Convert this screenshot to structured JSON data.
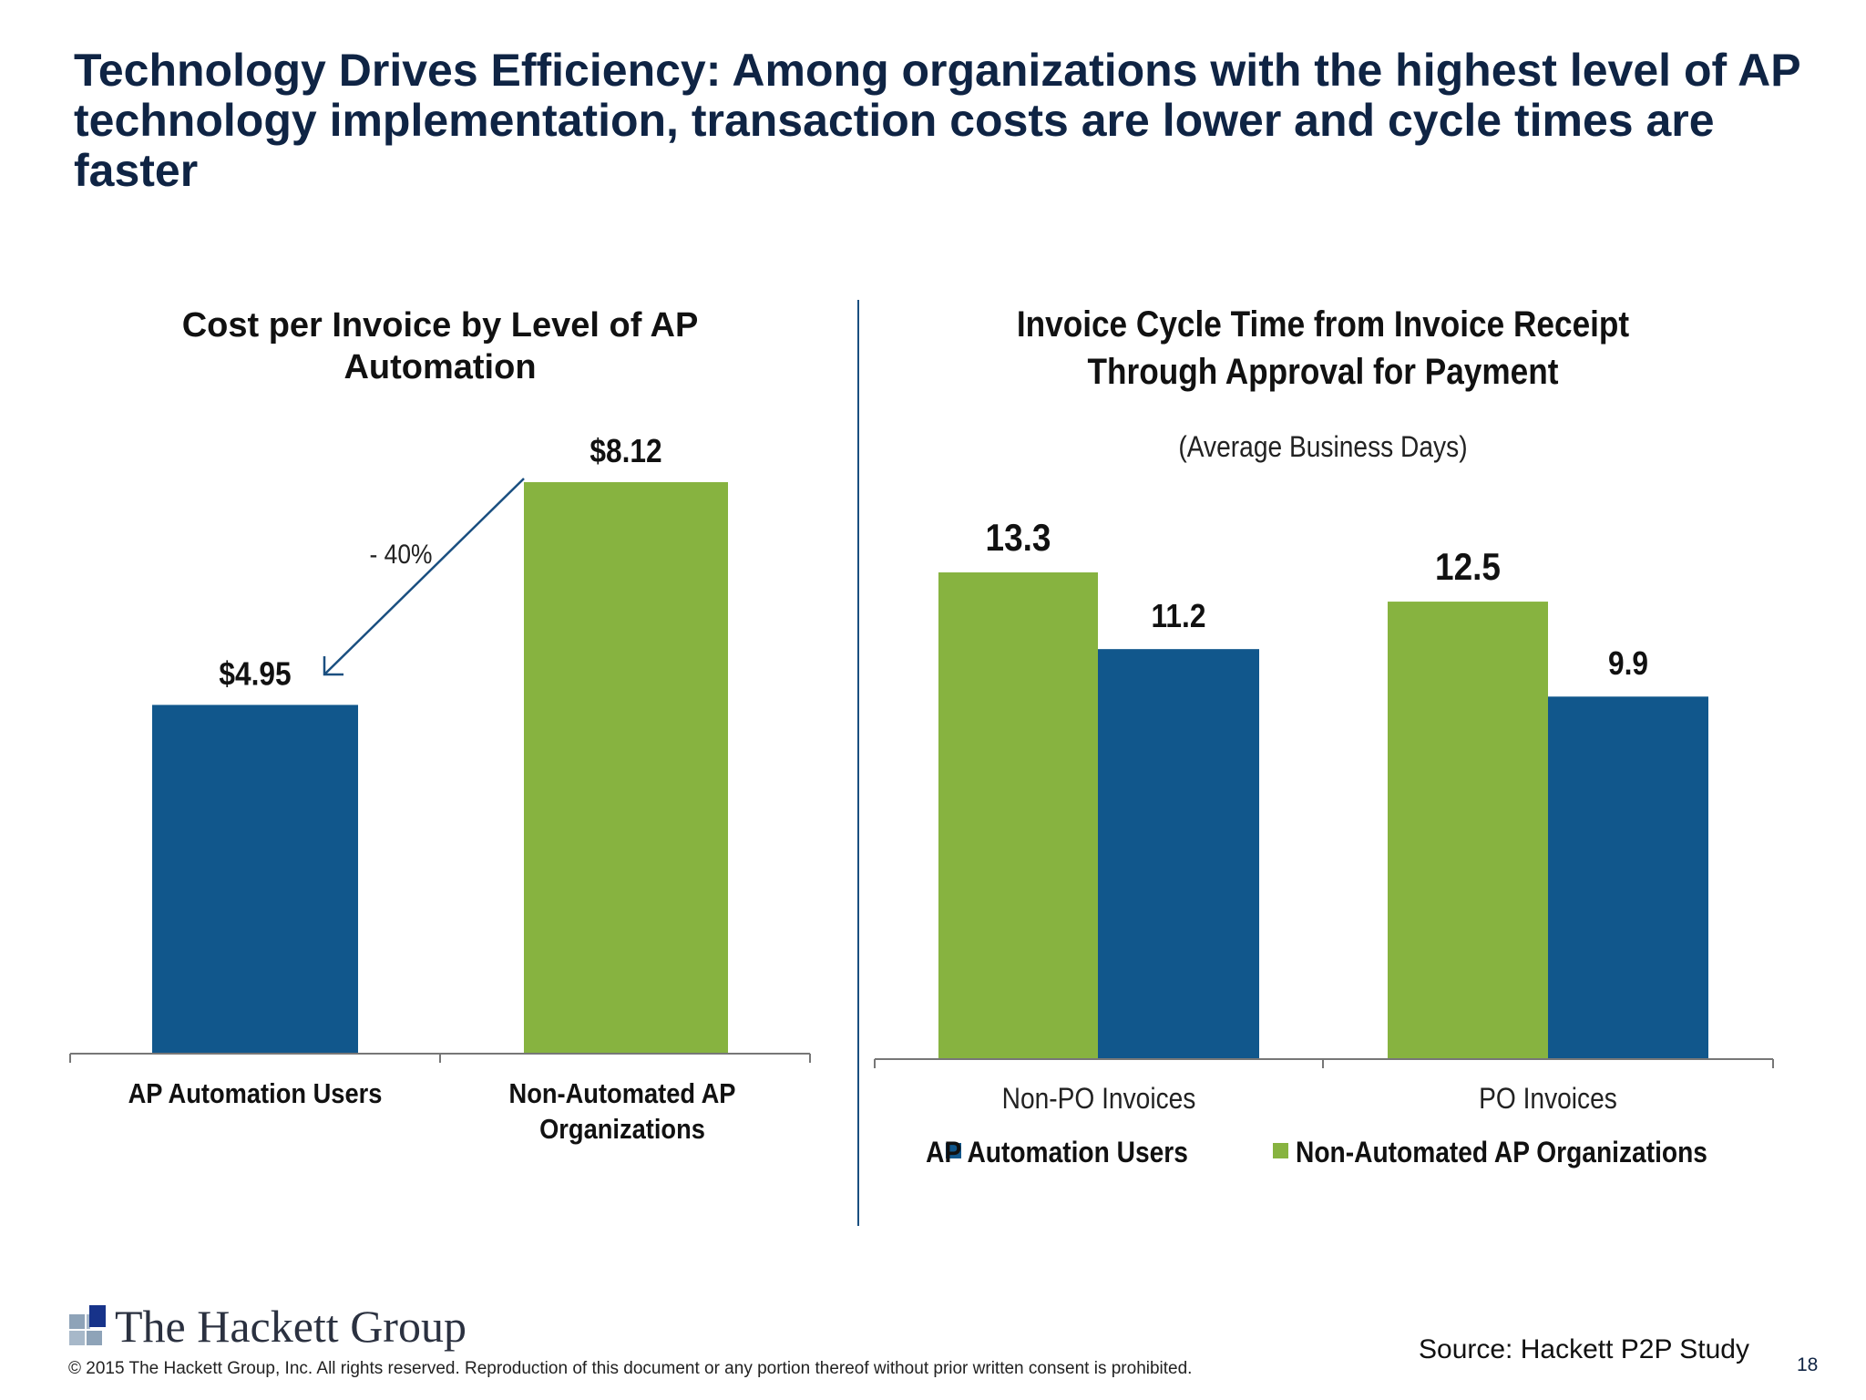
{
  "title": "Technology Drives Efficiency:  Among organizations with the highest level of AP technology implementation, transaction costs are lower and cycle times are faster",
  "colors": {
    "ap_automation_users": "#11578c",
    "non_automated": "#87b340",
    "title": "#0f2444"
  },
  "chart_data": [
    {
      "type": "bar",
      "title": "Cost per Invoice by Level of AP Automation",
      "categories": [
        "AP Automation Users",
        "Non-Automated AP Organizations"
      ],
      "values": [
        4.95,
        8.12
      ],
      "data_labels": [
        "$4.95",
        "$8.12"
      ],
      "bar_colors": [
        "#11578c",
        "#87b340"
      ],
      "annotation": "- 40%",
      "annotation_arrow": "from $8.12 bar to $4.95 bar",
      "ylim": [
        0,
        8.12
      ],
      "grid": false
    },
    {
      "type": "bar",
      "title": "Invoice Cycle Time from Invoice Receipt Through Approval for Payment",
      "subtitle": "(Average Business Days)",
      "categories": [
        "Non-PO Invoices",
        "PO Invoices"
      ],
      "series": [
        {
          "name": "Non-Automated AP Organizations",
          "values": [
            13.3,
            12.5
          ],
          "labels": [
            "13.3",
            "12.5"
          ],
          "color": "#87b340"
        },
        {
          "name": "AP Automation Users",
          "values": [
            11.2,
            9.9
          ],
          "labels": [
            "11.2",
            "9.9"
          ],
          "color": "#11578c"
        }
      ],
      "legend": {
        "placement": "bottom",
        "items": [
          {
            "name": "AP Automation Users",
            "color": "#11578c"
          },
          {
            "name": "Non-Automated AP Organizations",
            "color": "#87b340"
          }
        ]
      },
      "ylim": [
        0,
        13.3
      ],
      "grid": false
    }
  ],
  "footer": {
    "logo": "The Hackett Group",
    "copyright": "© 2015 The Hackett Group, Inc.  All rights reserved. Reproduction of this document or any portion thereof without prior written consent is prohibited.",
    "source": "Source:  Hackett P2P Study",
    "page_number": "18"
  }
}
